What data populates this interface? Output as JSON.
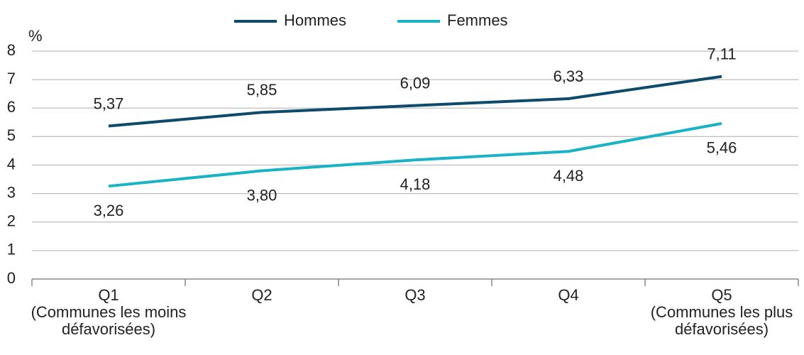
{
  "chart_data": {
    "type": "line",
    "y_label": "%",
    "categories": [
      [
        "Q1",
        "(Communes les moins",
        "défavorisées)"
      ],
      [
        "Q2"
      ],
      [
        "Q3"
      ],
      [
        "Q4"
      ],
      [
        "Q5",
        "(Communes les plus",
        "défavorisées)"
      ]
    ],
    "series": [
      {
        "name": "Hommes",
        "color": "#0d4a6b",
        "values": [
          5.37,
          5.85,
          6.09,
          6.33,
          7.11
        ],
        "value_labels": [
          "5,37",
          "5,85",
          "6,09",
          "6,33",
          "7,11"
        ],
        "label_position": "above"
      },
      {
        "name": "Femmes",
        "color": "#1ab3c6",
        "values": [
          3.26,
          3.8,
          4.18,
          4.48,
          5.46
        ],
        "value_labels": [
          "3,26",
          "3,80",
          "4,18",
          "4,48",
          "5,46"
        ],
        "label_position": "below"
      }
    ],
    "ylim": [
      0,
      8
    ],
    "yticks": [
      0,
      1,
      2,
      3,
      4,
      5,
      6,
      7,
      8
    ],
    "grid": true,
    "legend": "top"
  }
}
